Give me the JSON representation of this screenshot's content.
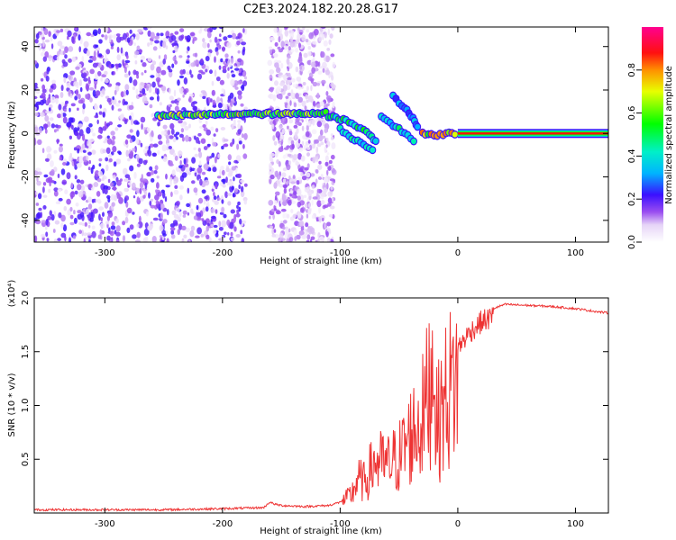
{
  "title": "C2E3.2024.182.20.28.G17",
  "chart_data": [
    {
      "type": "heatmap",
      "xlabel": "Height of straight line (km)",
      "ylabel": "Frequency (Hz)",
      "xlim": [
        -360,
        128
      ],
      "ylim": [
        -50,
        49
      ],
      "xticks": [
        -300,
        -200,
        -100,
        0,
        100
      ],
      "yticks": [
        -40,
        -20,
        0,
        20,
        40
      ],
      "colorbar": {
        "label": "Normalized spectral amplitude",
        "range": [
          0,
          1
        ],
        "ticks": [
          0.0,
          0.2,
          0.4,
          0.6,
          0.8
        ],
        "tick_labels": [
          "0.0",
          "0.2",
          "0.4",
          "0.6",
          "0.8"
        ],
        "colormap": "white-purple-blue-cyan-green-yellow-red-magenta"
      },
      "features": [
        {
          "desc": "noise region",
          "x_range": [
            -360,
            -180
          ],
          "f_range": [
            -50,
            49
          ],
          "amplitude": 0.12
        },
        {
          "desc": "noise region",
          "x_range": [
            -160,
            -105
          ],
          "f_range": [
            -50,
            49
          ],
          "amplitude": 0.08
        },
        {
          "desc": "carrier trace",
          "x": [
            -255,
            -190,
            -175,
            -160,
            -130,
            -110
          ],
          "f": [
            8,
            9,
            9,
            9,
            9,
            10
          ],
          "amplitude": 0.6
        },
        {
          "desc": "carrier branch",
          "x": [
            -110,
            -95,
            -85,
            -75,
            -68
          ],
          "f": [
            8,
            6,
            3,
            0,
            -5
          ],
          "amplitude": 0.45
        },
        {
          "desc": "carrier branch",
          "x": [
            -100,
            -90,
            -80,
            -70
          ],
          "f": [
            2,
            -2,
            -5,
            -8
          ],
          "amplitude": 0.4
        },
        {
          "desc": "carrier branch",
          "x": [
            -65,
            -55,
            -45,
            -35
          ],
          "f": [
            8,
            4,
            0,
            -5
          ],
          "amplitude": 0.4
        },
        {
          "desc": "carrier branch",
          "x": [
            -55,
            -45,
            -38,
            -33
          ],
          "f": [
            17,
            12,
            7,
            2
          ],
          "amplitude": 0.3
        },
        {
          "desc": "carrier converging",
          "x": [
            -30,
            -20,
            -10,
            0
          ],
          "f": [
            0,
            -1,
            0,
            0
          ],
          "amplitude": 0.7
        },
        {
          "desc": "steady carrier",
          "x": [
            0,
            128
          ],
          "f": [
            0,
            0
          ],
          "amplitude": 0.9
        }
      ]
    },
    {
      "type": "line",
      "xlabel": "Height of straight line (km)",
      "ylabel": "SNR (10 * v/v)",
      "y_multiplier": "(x10⁴)",
      "xlim": [
        -360,
        128
      ],
      "ylim": [
        0,
        2.0
      ],
      "xticks": [
        -300,
        -200,
        -100,
        0,
        100
      ],
      "yticks": [
        0.5,
        1.0,
        1.5,
        2.0
      ],
      "ytick_labels": [
        "0.5",
        "1.0",
        "1.5",
        "2.0"
      ],
      "series_color": "#ee3333",
      "x": [
        -360,
        -300,
        -250,
        -200,
        -165,
        -160,
        -155,
        -150,
        -130,
        -110,
        -100,
        -90,
        -85,
        -80,
        -70,
        -60,
        -50,
        -40,
        -30,
        -25,
        -20,
        -18,
        -10,
        0,
        10,
        20,
        30,
        40,
        60,
        80,
        100,
        120,
        128
      ],
      "y": [
        0.03,
        0.03,
        0.03,
        0.04,
        0.05,
        0.1,
        0.08,
        0.07,
        0.06,
        0.07,
        0.1,
        0.22,
        0.4,
        0.35,
        0.6,
        0.55,
        0.65,
        0.9,
        1.1,
        1.4,
        1.9,
        1.0,
        1.35,
        1.6,
        1.75,
        1.85,
        1.9,
        1.94,
        1.93,
        1.92,
        1.9,
        1.87,
        1.86
      ]
    }
  ]
}
